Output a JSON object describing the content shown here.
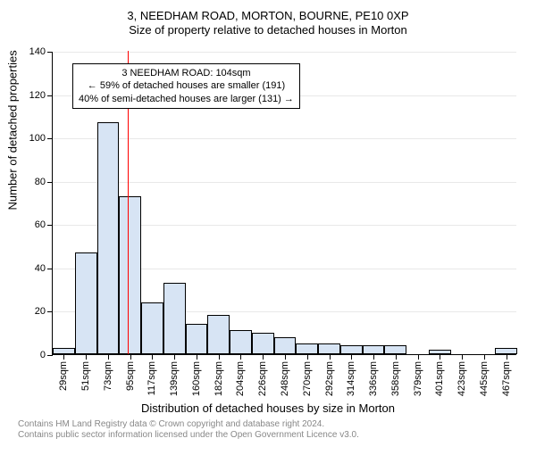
{
  "chart": {
    "type": "histogram",
    "title_main": "3, NEEDHAM ROAD, MORTON, BOURNE, PE10 0XP",
    "title_sub": "Size of property relative to detached houses in Morton",
    "title_fontsize": 13,
    "y_axis_title": "Number of detached properties",
    "x_axis_title": "Distribution of detached houses by size in Morton",
    "axis_title_fontsize": 13,
    "tick_fontsize": 11,
    "background_color": "#ffffff",
    "bar_fill_color": "#d7e4f4",
    "bar_border_color": "#000000",
    "ref_line_color": "#ff0000",
    "grid_color": "#e8e8e8",
    "ylim": [
      0,
      140
    ],
    "ytick_step": 20,
    "yticks": [
      0,
      20,
      40,
      60,
      80,
      100,
      120,
      140
    ],
    "x_categories": [
      "29sqm",
      "51sqm",
      "73sqm",
      "95sqm",
      "117sqm",
      "139sqm",
      "160sqm",
      "182sqm",
      "204sqm",
      "226sqm",
      "248sqm",
      "270sqm",
      "292sqm",
      "314sqm",
      "336sqm",
      "358sqm",
      "379sqm",
      "401sqm",
      "423sqm",
      "445sqm",
      "467sqm"
    ],
    "values": [
      3,
      47,
      107,
      73,
      24,
      33,
      14,
      18,
      11,
      10,
      8,
      5,
      5,
      4,
      4,
      4,
      0,
      2,
      0,
      0,
      3
    ],
    "bar_width_ratio": 1.0,
    "reference_value_sqm": 104,
    "reference_bin_index": 3.4,
    "annotation": {
      "lines": [
        "3 NEEDHAM ROAD: 104sqm",
        "← 59% of detached houses are smaller (191)",
        "40% of semi-detached houses are larger (131) →"
      ],
      "fontsize": 11,
      "border_color": "#000000",
      "background_color": "#ffffff"
    }
  },
  "footer": {
    "line1": "Contains HM Land Registry data © Crown copyright and database right 2024.",
    "line2": "Contains public sector information licensed under the Open Government Licence v3.0.",
    "color": "#888888",
    "fontsize": 10
  }
}
